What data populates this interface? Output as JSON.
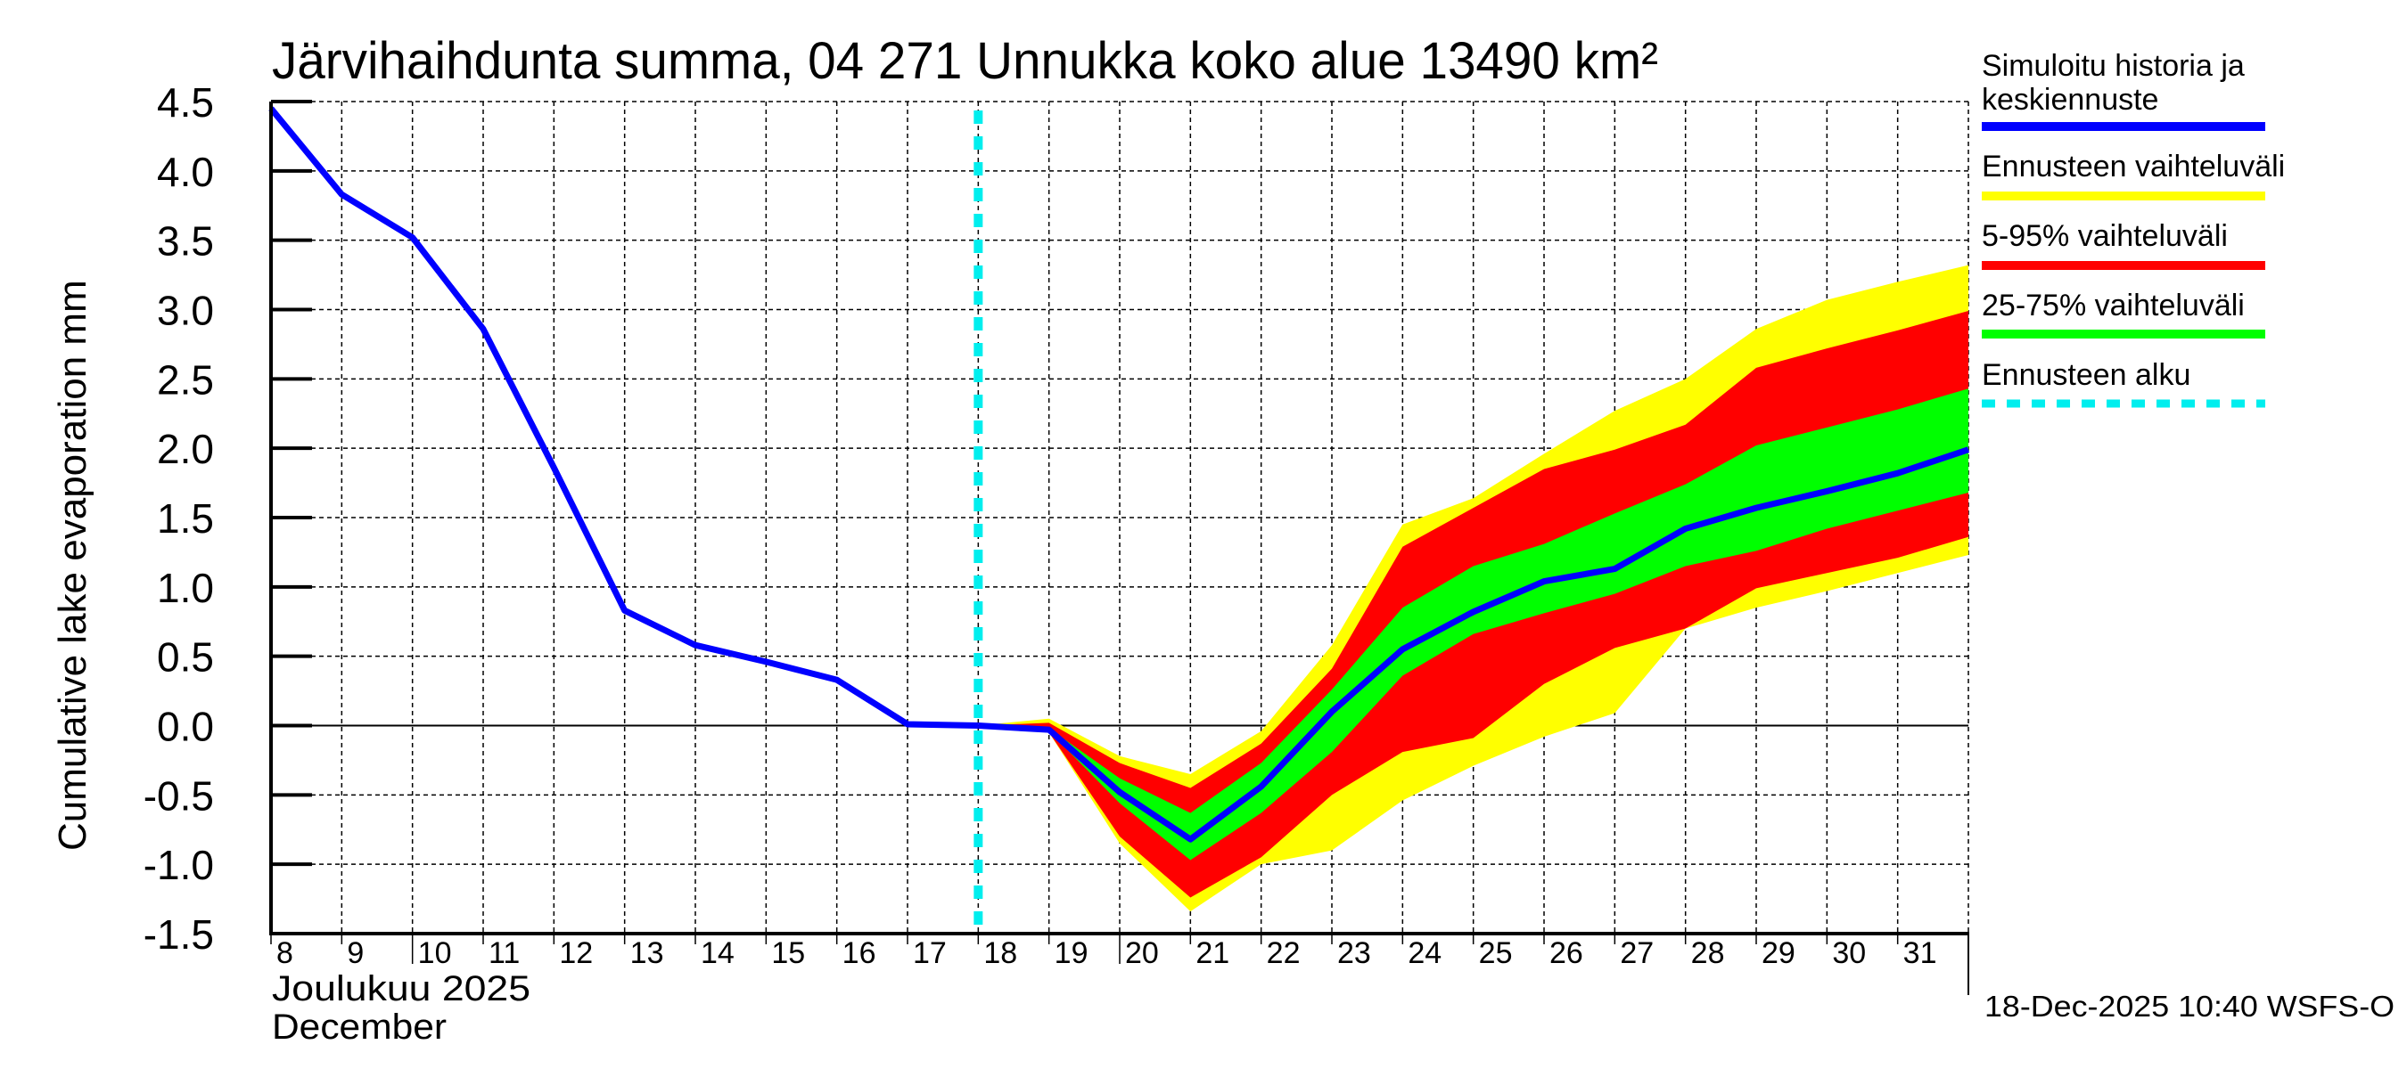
{
  "chart_data": {
    "type": "area",
    "title": "Järvihaihdunta summa, 04 271 Unnukka koko alue 13490 km²",
    "xlabel_line1": "Joulukuu  2025",
    "xlabel_line2": "December",
    "ylabel": "Cumulative lake evaporation   mm",
    "ylim": [
      -1.5,
      4.5
    ],
    "yticks": [
      "4.5",
      "4.0",
      "3.5",
      "3.0",
      "2.5",
      "2.0",
      "1.5",
      "1.0",
      "0.5",
      "0.0",
      "-0.5",
      "-1.0",
      "-1.5"
    ],
    "ytick_values": [
      4.5,
      4.0,
      3.5,
      3.0,
      2.5,
      2.0,
      1.5,
      1.0,
      0.5,
      0.0,
      -0.5,
      -1.0,
      -1.5
    ],
    "xlim": [
      8,
      32
    ],
    "xtick_labels": [
      "8",
      "9",
      "10",
      "11",
      "12",
      "13",
      "14",
      "15",
      "16",
      "17",
      "18",
      "19",
      "20",
      "21",
      "22",
      "23",
      "24",
      "25",
      "26",
      "27",
      "28",
      "29",
      "30",
      "31"
    ],
    "grid": true,
    "zero_line": true,
    "forecast_start_day": 18,
    "history": {
      "name": "Simuloitu historia ja keskiennuste",
      "x": [
        8,
        9,
        10,
        11,
        12,
        13,
        14,
        15,
        16,
        17,
        18
      ],
      "y": [
        4.45,
        3.83,
        3.52,
        2.86,
        1.86,
        0.83,
        0.58,
        0.46,
        0.33,
        0.01,
        0.0
      ]
    },
    "forecast_x": [
      18,
      19,
      20,
      21,
      22,
      23,
      24,
      25,
      26,
      27,
      28,
      29,
      30,
      31,
      32
    ],
    "series": [
      {
        "name": "Ennusteen vaihteluväli",
        "color": "#ffff00",
        "upper": [
          0.0,
          0.05,
          -0.22,
          -0.35,
          -0.04,
          0.58,
          1.45,
          1.64,
          1.96,
          2.27,
          2.5,
          2.86,
          3.07,
          3.2,
          3.32
        ],
        "lower": [
          0.0,
          -0.05,
          -0.85,
          -1.34,
          -1.0,
          -0.9,
          -0.54,
          -0.29,
          -0.08,
          0.09,
          0.7,
          0.85,
          0.97,
          1.1,
          1.23
        ]
      },
      {
        "name": "5-95% vaihteluväli",
        "color": "#ff0000",
        "upper": [
          0.0,
          0.02,
          -0.27,
          -0.45,
          -0.13,
          0.41,
          1.29,
          1.57,
          1.85,
          1.99,
          2.17,
          2.58,
          2.72,
          2.85,
          2.99
        ],
        "lower": [
          0.0,
          -0.05,
          -0.8,
          -1.24,
          -0.95,
          -0.5,
          -0.19,
          -0.09,
          0.3,
          0.56,
          0.7,
          0.99,
          1.1,
          1.21,
          1.36
        ]
      },
      {
        "name": "25-75% vaihteluväli",
        "color": "#00ff00",
        "upper": [
          0.0,
          -0.02,
          -0.38,
          -0.63,
          -0.27,
          0.26,
          0.85,
          1.15,
          1.31,
          1.53,
          1.74,
          2.02,
          2.15,
          2.28,
          2.43
        ],
        "lower": [
          0.0,
          -0.04,
          -0.56,
          -0.97,
          -0.63,
          -0.19,
          0.36,
          0.66,
          0.81,
          0.95,
          1.15,
          1.26,
          1.42,
          1.55,
          1.68
        ]
      }
    ],
    "median": {
      "name": "keskiennuste",
      "color": "#0000ff",
      "x": [
        18,
        19,
        20,
        21,
        22,
        23,
        24,
        25,
        26,
        27,
        28,
        29,
        30,
        31,
        32
      ],
      "y": [
        0.0,
        -0.03,
        -0.48,
        -0.82,
        -0.44,
        0.1,
        0.55,
        0.82,
        1.04,
        1.13,
        1.42,
        1.57,
        1.69,
        1.82,
        1.99
      ]
    },
    "legend": {
      "placement": "right",
      "items": [
        {
          "label_line1": "Simuloitu historia ja",
          "label_line2": "keskiennuste",
          "color": "#0000ff",
          "style": "solid"
        },
        {
          "label_line1": "Ennusteen vaihteluväli",
          "label_line2": "",
          "color": "#ffff00",
          "style": "solid"
        },
        {
          "label_line1": "5-95% vaihteluväli",
          "label_line2": "",
          "color": "#ff0000",
          "style": "solid"
        },
        {
          "label_line1": "25-75% vaihteluväli",
          "label_line2": "",
          "color": "#00ff00",
          "style": "solid"
        },
        {
          "label_line1": "Ennusteen alku",
          "label_line2": "",
          "color": "#00eeee",
          "style": "dashed"
        }
      ]
    },
    "footer": "18-Dec-2025 10:40 WSFS-O"
  }
}
